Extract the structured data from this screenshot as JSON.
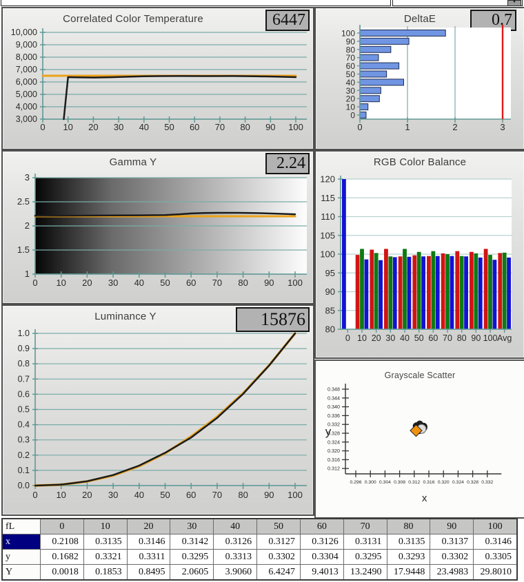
{
  "top_strip": {
    "dropdown_icon": "▼"
  },
  "panels": {
    "cct": {
      "title": "Correlated Color Temperature",
      "value": "6447"
    },
    "deltae": {
      "title": "DeltaE",
      "value": "0.7"
    },
    "gamma": {
      "title": "Gamma Y",
      "value": "2.24"
    },
    "rgb": {
      "title": "RGB Color Balance"
    },
    "luminance": {
      "title": "Luminance Y",
      "value": "15876"
    },
    "scatter": {
      "title": "Grayscale Scatter",
      "xlabel": "x",
      "ylabel": "y"
    }
  },
  "colors": {
    "grid_teal": "#79aca9",
    "grid_light": "#b7d2d0",
    "axis_teal": "#5e9995",
    "reference_orange": "#eda21a",
    "measured_black": "#1b1b1b",
    "bar_blue": "#7095e2",
    "bar_blue_border": "#1c2a50",
    "limit_red": "#e01818",
    "rgb_red": "#d21414",
    "rgb_green": "#0e7a12",
    "rgb_blue": "#1212d2",
    "selected_row": "#000080"
  },
  "chart_data": [
    {
      "id": "cct",
      "type": "line",
      "title": "Correlated Color Temperature",
      "xlim": [
        0,
        100
      ],
      "xticks": [
        0,
        10,
        20,
        30,
        40,
        50,
        60,
        70,
        80,
        90,
        100
      ],
      "ylim": [
        3000,
        10000
      ],
      "yticks": [
        {
          "v": 10000,
          "label": "10,000"
        },
        {
          "v": 9000,
          "label": "9,000"
        },
        {
          "v": 8000,
          "label": "8,000"
        },
        {
          "v": 7000,
          "label": "7,000"
        },
        {
          "v": 6000,
          "label": "6,000"
        },
        {
          "v": 5000,
          "label": "5,000"
        },
        {
          "v": 4000,
          "label": "4,000"
        },
        {
          "v": 3000,
          "label": "3,000"
        }
      ],
      "series": [
        {
          "name": "reference",
          "color": "reference_orange",
          "width": 3,
          "points": [
            [
              0,
              6500
            ],
            [
              100,
              6500
            ]
          ]
        },
        {
          "name": "measured",
          "color": "measured_black",
          "width": 2.5,
          "points": [
            [
              8.3,
              3000
            ],
            [
              10,
              6390
            ],
            [
              13,
              6375
            ],
            [
              20,
              6355
            ],
            [
              27,
              6385
            ],
            [
              34,
              6420
            ],
            [
              40,
              6455
            ],
            [
              46,
              6470
            ],
            [
              55,
              6478
            ],
            [
              65,
              6470
            ],
            [
              75,
              6478
            ],
            [
              84,
              6460
            ],
            [
              92,
              6425
            ],
            [
              100,
              6390
            ]
          ]
        }
      ]
    },
    {
      "id": "deltae",
      "type": "hbar",
      "title": "DeltaE",
      "categories": [
        "100",
        "90",
        "80",
        "70",
        "60",
        "50",
        "40",
        "30",
        "20",
        "10",
        "0"
      ],
      "values": [
        1.8,
        1.03,
        0.65,
        0.39,
        0.82,
        0.56,
        0.92,
        0.44,
        0.41,
        0.17,
        0.13
      ],
      "xlim": [
        0,
        3
      ],
      "xticks": [
        0,
        1,
        2,
        3
      ],
      "limit_line": 3
    },
    {
      "id": "gamma",
      "type": "line",
      "title": "Gamma Y",
      "xlim": [
        0,
        100
      ],
      "xticks": [
        0,
        10,
        20,
        30,
        40,
        50,
        60,
        70,
        80,
        90,
        100
      ],
      "ylim": [
        1,
        3
      ],
      "yticks": [
        {
          "v": 3,
          "label": "3"
        },
        {
          "v": 2.5,
          "label": "2.5"
        },
        {
          "v": 2,
          "label": "2"
        },
        {
          "v": 1.5,
          "label": "1.5"
        },
        {
          "v": 1,
          "label": "1"
        }
      ],
      "gradient_background": true,
      "series": [
        {
          "name": "reference",
          "color": "reference_orange",
          "width": 3,
          "points": [
            [
              0,
              2.2
            ],
            [
              100,
              2.2
            ]
          ]
        },
        {
          "name": "measured",
          "color": "measured_black",
          "width": 2.5,
          "points": [
            [
              0,
              2.21
            ],
            [
              10,
              2.212
            ],
            [
              20,
              2.215
            ],
            [
              30,
              2.218
            ],
            [
              40,
              2.22
            ],
            [
              50,
              2.226
            ],
            [
              55,
              2.24
            ],
            [
              60,
              2.258
            ],
            [
              65,
              2.268
            ],
            [
              70,
              2.272
            ],
            [
              78,
              2.272
            ],
            [
              85,
              2.266
            ],
            [
              92,
              2.256
            ],
            [
              100,
              2.242
            ]
          ]
        }
      ]
    },
    {
      "id": "rgb",
      "type": "grouped_bar",
      "title": "RGB Color Balance",
      "categories": [
        "0",
        "10",
        "20",
        "30",
        "40",
        "50",
        "60",
        "70",
        "80",
        "90",
        "100",
        "Avg"
      ],
      "ylim": [
        80,
        120
      ],
      "yticks": [
        {
          "v": 120,
          "label": "120"
        },
        {
          "v": 115,
          "label": "115"
        },
        {
          "v": 110,
          "label": "110"
        },
        {
          "v": 105,
          "label": "105"
        },
        {
          "v": 100,
          "label": "100"
        },
        {
          "v": 95,
          "label": "95"
        },
        {
          "v": 90,
          "label": "90"
        },
        {
          "v": 85,
          "label": "85"
        },
        {
          "v": 80,
          "label": "80"
        }
      ],
      "series": [
        {
          "name": "red",
          "color": "rgb_red",
          "values": [
            null,
            99.8,
            101.2,
            101.4,
            99.4,
            99.7,
            99.5,
            100.2,
            100.8,
            100.6,
            101.4,
            100.3
          ]
        },
        {
          "name": "green",
          "color": "rgb_green",
          "values": [
            null,
            101.4,
            100.3,
            99.4,
            101.4,
            100.6,
            100.8,
            100.0,
            99.5,
            100.2,
            99.8,
            100.4
          ]
        },
        {
          "name": "blue",
          "color": "rgb_blue",
          "values": [
            120,
            98.6,
            98.4,
            99.2,
            99.3,
            99.4,
            99.5,
            99.5,
            99.4,
            99.1,
            98.5,
            99.1
          ]
        }
      ]
    },
    {
      "id": "luminance",
      "type": "line",
      "title": "Luminance Y",
      "xlim": [
        0,
        100
      ],
      "xticks": [
        0,
        10,
        20,
        30,
        40,
        50,
        60,
        70,
        80,
        90,
        100
      ],
      "ylim": [
        0,
        1
      ],
      "yticks": [
        {
          "v": 1,
          "label": "1.0"
        },
        {
          "v": 0.9,
          "label": "0.9"
        },
        {
          "v": 0.8,
          "label": "0.8"
        },
        {
          "v": 0.7,
          "label": "0.7"
        },
        {
          "v": 0.6,
          "label": "0.6"
        },
        {
          "v": 0.5,
          "label": "0.5"
        },
        {
          "v": 0.4,
          "label": "0.4"
        },
        {
          "v": 0.3,
          "label": "0.3"
        },
        {
          "v": 0.2,
          "label": "0.2"
        },
        {
          "v": 0.1,
          "label": "0.1"
        },
        {
          "v": 0,
          "label": "0.0"
        }
      ],
      "series": [
        {
          "name": "reference",
          "color": "reference_orange",
          "width": 3.5,
          "points": [
            [
              0,
              0
            ],
            [
              10,
              0.006
            ],
            [
              20,
              0.027
            ],
            [
              30,
              0.066
            ],
            [
              40,
              0.127
            ],
            [
              50,
              0.212
            ],
            [
              60,
              0.323
            ],
            [
              70,
              0.452
            ],
            [
              80,
              0.607
            ],
            [
              90,
              0.79
            ],
            [
              100,
              1.0
            ]
          ]
        },
        {
          "name": "measured",
          "color": "measured_black",
          "width": 2.5,
          "points": [
            [
              0,
              0.0001
            ],
            [
              10,
              0.0062
            ],
            [
              20,
              0.0285
            ],
            [
              30,
              0.0691
            ],
            [
              40,
              0.1311
            ],
            [
              50,
              0.2156
            ],
            [
              60,
              0.3155
            ],
            [
              70,
              0.4446
            ],
            [
              80,
              0.6022
            ],
            [
              90,
              0.7885
            ],
            [
              100,
              1.0
            ]
          ]
        }
      ]
    },
    {
      "id": "scatter",
      "type": "scatter",
      "title": "Grayscale Scatter",
      "xlabel": "x",
      "ylabel": "y",
      "xticks": [
        "0.296",
        "0.300",
        "0.304",
        "0.308",
        "0.312",
        "0.316",
        "0.320",
        "0.324",
        "0.328",
        "0.332"
      ],
      "yticks": [
        "0.348",
        "0.344",
        "0.340",
        "0.336",
        "0.332",
        "0.328",
        "0.324",
        "0.320",
        "0.316",
        "0.312"
      ],
      "points": [
        [
          0.3135,
          0.3321
        ],
        [
          0.3146,
          0.3311
        ],
        [
          0.3142,
          0.3295
        ],
        [
          0.3126,
          0.3313
        ],
        [
          0.3127,
          0.3302
        ],
        [
          0.3126,
          0.3304
        ],
        [
          0.3131,
          0.3295
        ],
        [
          0.3135,
          0.3293
        ],
        [
          0.3137,
          0.3302
        ],
        [
          0.3146,
          0.3305
        ]
      ],
      "reference_point": [
        0.314,
        0.33
      ],
      "target_point": [
        0.3125,
        0.3292
      ]
    }
  ],
  "table": {
    "corner": "fL",
    "columns": [
      "0",
      "10",
      "20",
      "30",
      "40",
      "50",
      "60",
      "70",
      "80",
      "90",
      "100"
    ],
    "rows": [
      {
        "label": "x",
        "selected": true,
        "values": [
          "0.2108",
          "0.3135",
          "0.3146",
          "0.3142",
          "0.3126",
          "0.3127",
          "0.3126",
          "0.3131",
          "0.3135",
          "0.3137",
          "0.3146"
        ]
      },
      {
        "label": "y",
        "selected": false,
        "values": [
          "0.1682",
          "0.3321",
          "0.3311",
          "0.3295",
          "0.3313",
          "0.3302",
          "0.3304",
          "0.3295",
          "0.3293",
          "0.3302",
          "0.3305"
        ]
      },
      {
        "label": "Y",
        "selected": false,
        "values": [
          "0.0018",
          "0.1853",
          "0.8495",
          "2.0605",
          "3.9060",
          "6.4247",
          "9.4013",
          "13.2490",
          "17.9448",
          "23.4983",
          "29.8010"
        ]
      }
    ]
  }
}
